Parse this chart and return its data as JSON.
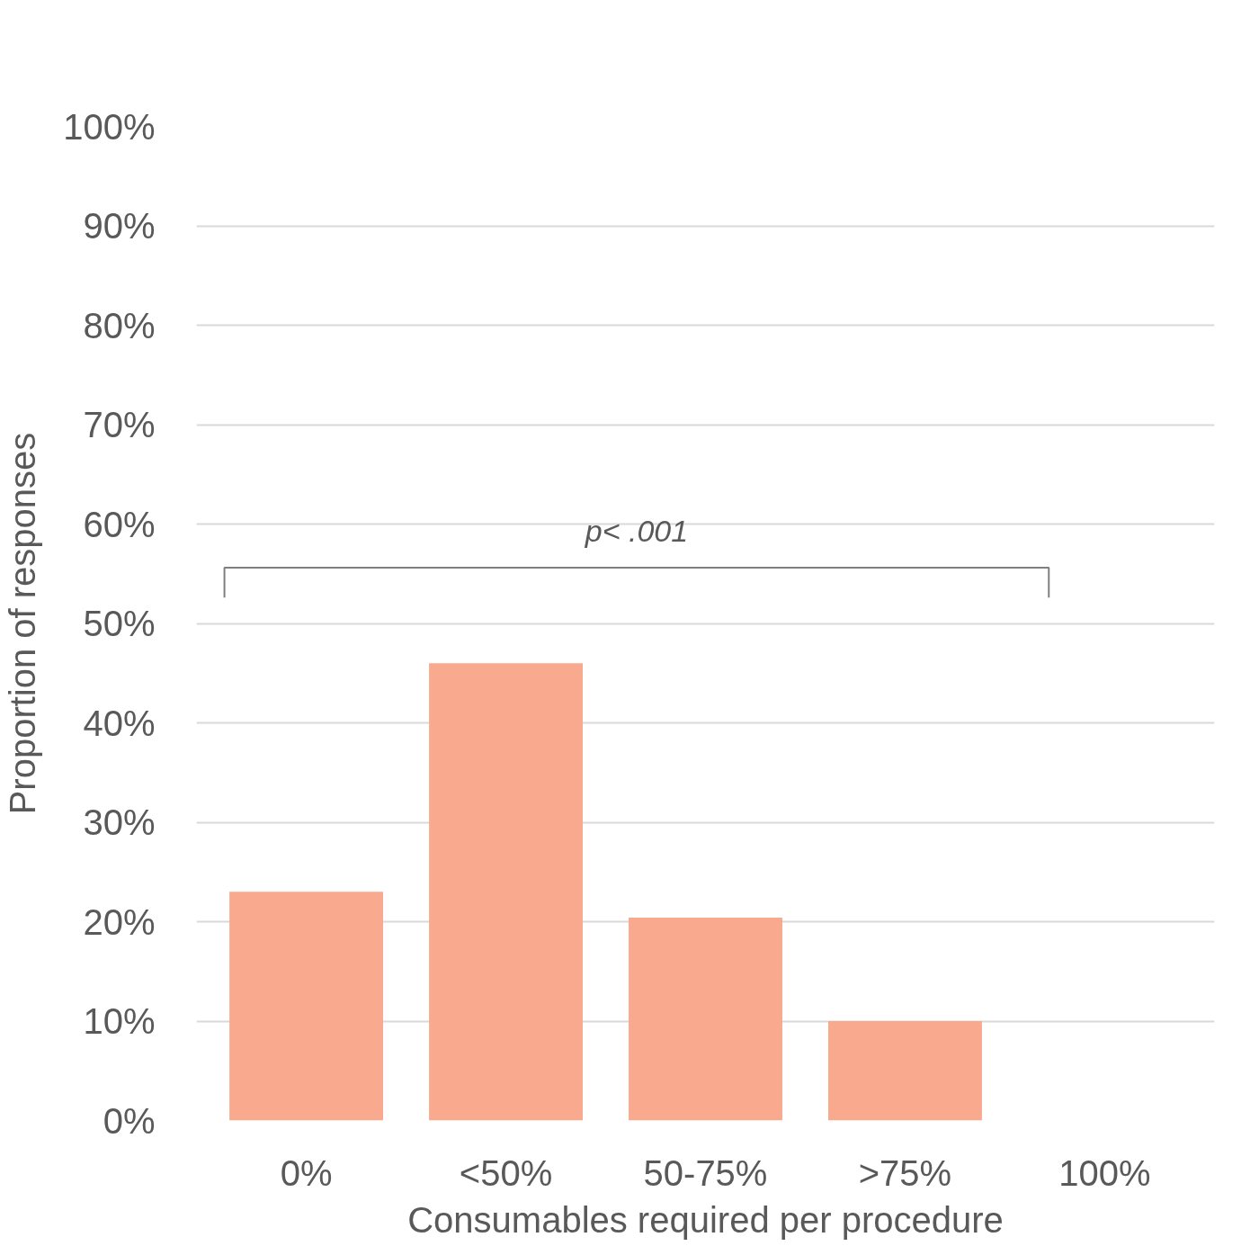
{
  "chart_data": {
    "type": "bar",
    "xlabel": "Consumables required per procedure",
    "ylabel": "Proportion of responses",
    "categories": [
      "0%",
      "<50%",
      "50-75%",
      ">75%",
      "100%"
    ],
    "values": [
      23,
      46,
      20.4,
      10,
      0
    ],
    "color": "#f8a98e",
    "ylim": [
      0,
      100
    ],
    "yticks": [
      {
        "value": 0,
        "label": "0%"
      },
      {
        "value": 10,
        "label": "10%"
      },
      {
        "value": 20,
        "label": "20%"
      },
      {
        "value": 30,
        "label": "30%"
      },
      {
        "value": 40,
        "label": "40%"
      },
      {
        "value": 50,
        "label": "50%"
      },
      {
        "value": 60,
        "label": "60%"
      },
      {
        "value": 70,
        "label": "70%"
      },
      {
        "value": 80,
        "label": "80%"
      },
      {
        "value": 90,
        "label": "90%"
      },
      {
        "value": 100,
        "label": "100%"
      }
    ],
    "grid": "y",
    "annotations": [
      "p< .001"
    ]
  }
}
